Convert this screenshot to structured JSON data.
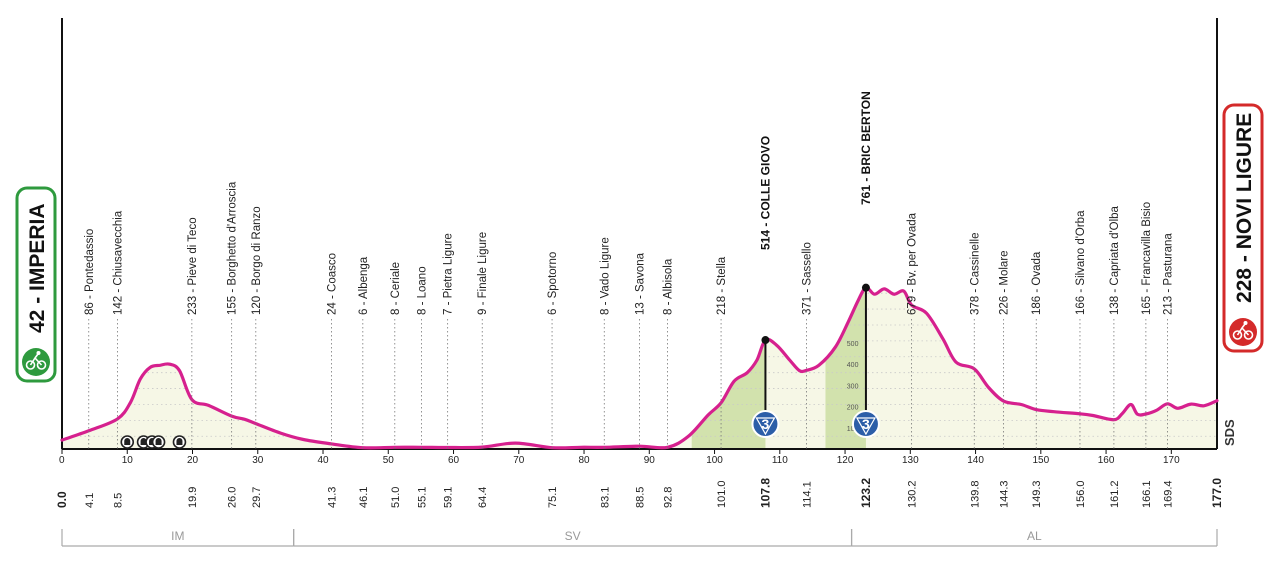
{
  "chart_data": {
    "type": "area",
    "x": [
      0.0,
      4.1,
      8.5,
      10.5,
      12.0,
      13.5,
      15.0,
      16.5,
      18.0,
      19.9,
      22.5,
      26.0,
      28.0,
      29.7,
      33.5,
      37.0,
      41.3,
      46.1,
      51.0,
      55.1,
      59.1,
      64.4,
      69.5,
      75.1,
      79.5,
      83.1,
      88.5,
      92.8,
      96.0,
      99.0,
      101.0,
      103.0,
      105.0,
      106.5,
      107.8,
      109.5,
      111.5,
      113.0,
      114.1,
      116.0,
      118.5,
      120.5,
      122.0,
      123.2,
      124.5,
      126.0,
      127.5,
      129.0,
      130.2,
      132.5,
      135.0,
      137.0,
      139.8,
      142.0,
      144.3,
      147.0,
      149.3,
      152.0,
      156.0,
      158.0,
      161.2,
      162.5,
      163.8,
      164.8,
      166.1,
      167.7,
      169.4,
      171.0,
      173.0,
      175.0,
      177.0
    ],
    "y": [
      42,
      86,
      142,
      220,
      330,
      385,
      395,
      400,
      370,
      233,
      205,
      155,
      140,
      120,
      75,
      45,
      24,
      6,
      8,
      8,
      7,
      9,
      28,
      6,
      8,
      8,
      13,
      8,
      60,
      160,
      218,
      320,
      360,
      420,
      514,
      490,
      420,
      370,
      371,
      395,
      480,
      600,
      700,
      761,
      730,
      755,
      730,
      745,
      679,
      640,
      520,
      410,
      378,
      290,
      226,
      210,
      186,
      176,
      166,
      158,
      138,
      168,
      210,
      164,
      165,
      182,
      213,
      192,
      212,
      204,
      228
    ],
    "xlim": [
      0,
      177
    ],
    "ylim": [
      0,
      900
    ],
    "x_ticks": [
      0,
      10,
      20,
      30,
      40,
      50,
      60,
      70,
      80,
      90,
      100,
      110,
      120,
      130,
      140,
      150,
      160,
      170
    ],
    "km_marks": [
      "0.0",
      "4.1",
      "8.5",
      "19.9",
      "26.0",
      "29.7",
      "41.3",
      "46.1",
      "51.0",
      "55.1",
      "59.1",
      "64.4",
      "75.1",
      "83.1",
      "88.5",
      "92.8",
      "101.0",
      "107.8",
      "114.1",
      "123.2",
      "130.2",
      "139.8",
      "144.3",
      "149.3",
      "156.0",
      "161.2",
      "166.1",
      "169.4",
      "177.0"
    ],
    "climb_axis_ticks": [
      100,
      200,
      300,
      400,
      500,
      600,
      700,
      800
    ],
    "start": {
      "label": "42 - IMPERIA",
      "km": 0.0,
      "color": "#2e9a3e"
    },
    "finish": {
      "label": "228 - NOVI LIGURE",
      "km": 177.0,
      "color": "#d42a2a"
    },
    "places": [
      {
        "label": "86 - Pontedassio",
        "km": 4.1,
        "alt": 86
      },
      {
        "label": "142 - Chiusavecchia",
        "km": 8.5,
        "alt": 142
      },
      {
        "label": "233 - Pieve di Teco",
        "km": 19.9,
        "alt": 233
      },
      {
        "label": "155 - Borghetto d'Arroscia",
        "km": 26.0,
        "alt": 155
      },
      {
        "label": "120 - Borgo di Ranzo",
        "km": 29.7,
        "alt": 120
      },
      {
        "label": "24 - Coasco",
        "km": 41.3,
        "alt": 24
      },
      {
        "label": "6 - Albenga",
        "km": 46.1,
        "alt": 6
      },
      {
        "label": "8 - Ceriale",
        "km": 51.0,
        "alt": 8
      },
      {
        "label": "8 - Loano",
        "km": 55.1,
        "alt": 8
      },
      {
        "label": "7 - Pietra Ligure",
        "km": 59.1,
        "alt": 7
      },
      {
        "label": "9 - Finale Ligure",
        "km": 64.4,
        "alt": 9
      },
      {
        "label": "6 - Spotorno",
        "km": 75.1,
        "alt": 6
      },
      {
        "label": "8 - Vado Ligure",
        "km": 83.1,
        "alt": 8
      },
      {
        "label": "13 - Savona",
        "km": 88.5,
        "alt": 13
      },
      {
        "label": "8 - Albisola",
        "km": 92.8,
        "alt": 8
      },
      {
        "label": "218 - Stella",
        "km": 101.0,
        "alt": 218
      },
      {
        "label": "514 - COLLE GIOVO",
        "km": 107.8,
        "alt": 514,
        "gpm": "3"
      },
      {
        "label": "371 - Sassello",
        "km": 114.1,
        "alt": 371
      },
      {
        "label": "761 - BRIC BERTON",
        "km": 123.2,
        "alt": 761,
        "gpm": "3"
      },
      {
        "label": "679 - Bv. per Ovada",
        "km": 130.2,
        "alt": 679
      },
      {
        "label": "378 - Cassinelle",
        "km": 139.8,
        "alt": 378
      },
      {
        "label": "226 - Molare",
        "km": 144.3,
        "alt": 226
      },
      {
        "label": "186 - Ovada",
        "km": 149.3,
        "alt": 186
      },
      {
        "label": "166 - Silvano d'Orba",
        "km": 156.0,
        "alt": 166
      },
      {
        "label": "138 - Capriata d'Olba",
        "km": 161.2,
        "alt": 138
      },
      {
        "label": "165 - Francavilla Bisio",
        "km": 166.1,
        "alt": 165
      },
      {
        "label": "213 - Pasturana",
        "km": 169.4,
        "alt": 213
      }
    ],
    "climbs": [
      {
        "from": 96.5,
        "to": 107.8
      },
      {
        "from": 117.0,
        "to": 123.2
      }
    ],
    "tunnels_km": [
      10.0,
      12.5,
      13.8,
      14.8,
      18.0
    ],
    "provinces": [
      {
        "label": "IM",
        "from": 0,
        "to": 35.5
      },
      {
        "label": "SV",
        "from": 35.5,
        "to": 121.0
      },
      {
        "label": "AL",
        "from": 121.0,
        "to": 177.0
      }
    ],
    "colors": {
      "line": "#d6208e",
      "fill": "#f6f7e6",
      "climb": "#d2e2ad",
      "gpm": "#2c5ea8",
      "grid": "#c9c9c9"
    },
    "watermark": "SDS"
  }
}
